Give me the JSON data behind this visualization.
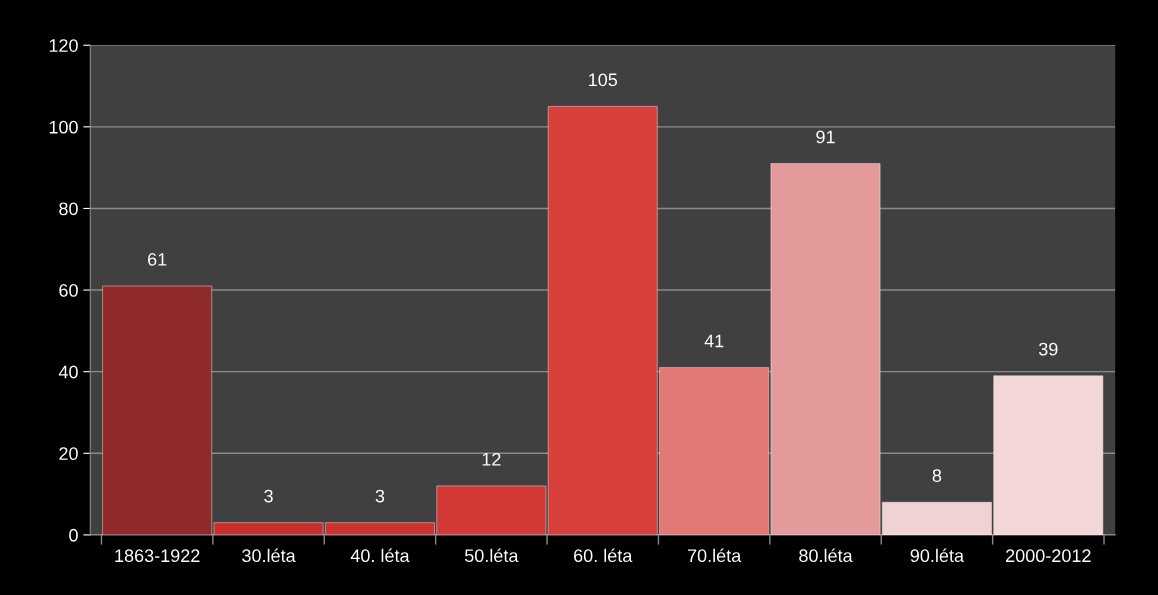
{
  "chart_data": {
    "type": "bar",
    "categories": [
      "1863-1922",
      "30.léta",
      "40. léta",
      "50.léta",
      "60. léta",
      "70.léta",
      "80.léta",
      "90.léta",
      "2000-2012"
    ],
    "values": [
      61,
      3,
      3,
      12,
      105,
      41,
      91,
      8,
      39
    ],
    "colors": [
      "#8e2a27",
      "#c8302d",
      "#cc3431",
      "#d33a37",
      "#d8403c",
      "#e27876",
      "#e49a9b",
      "#f1d2d2",
      "#f2d6d8"
    ],
    "ylim": [
      0,
      120
    ],
    "yticks": [
      0,
      20,
      40,
      60,
      80,
      100,
      120
    ],
    "grid": "y",
    "data_labels": true
  }
}
